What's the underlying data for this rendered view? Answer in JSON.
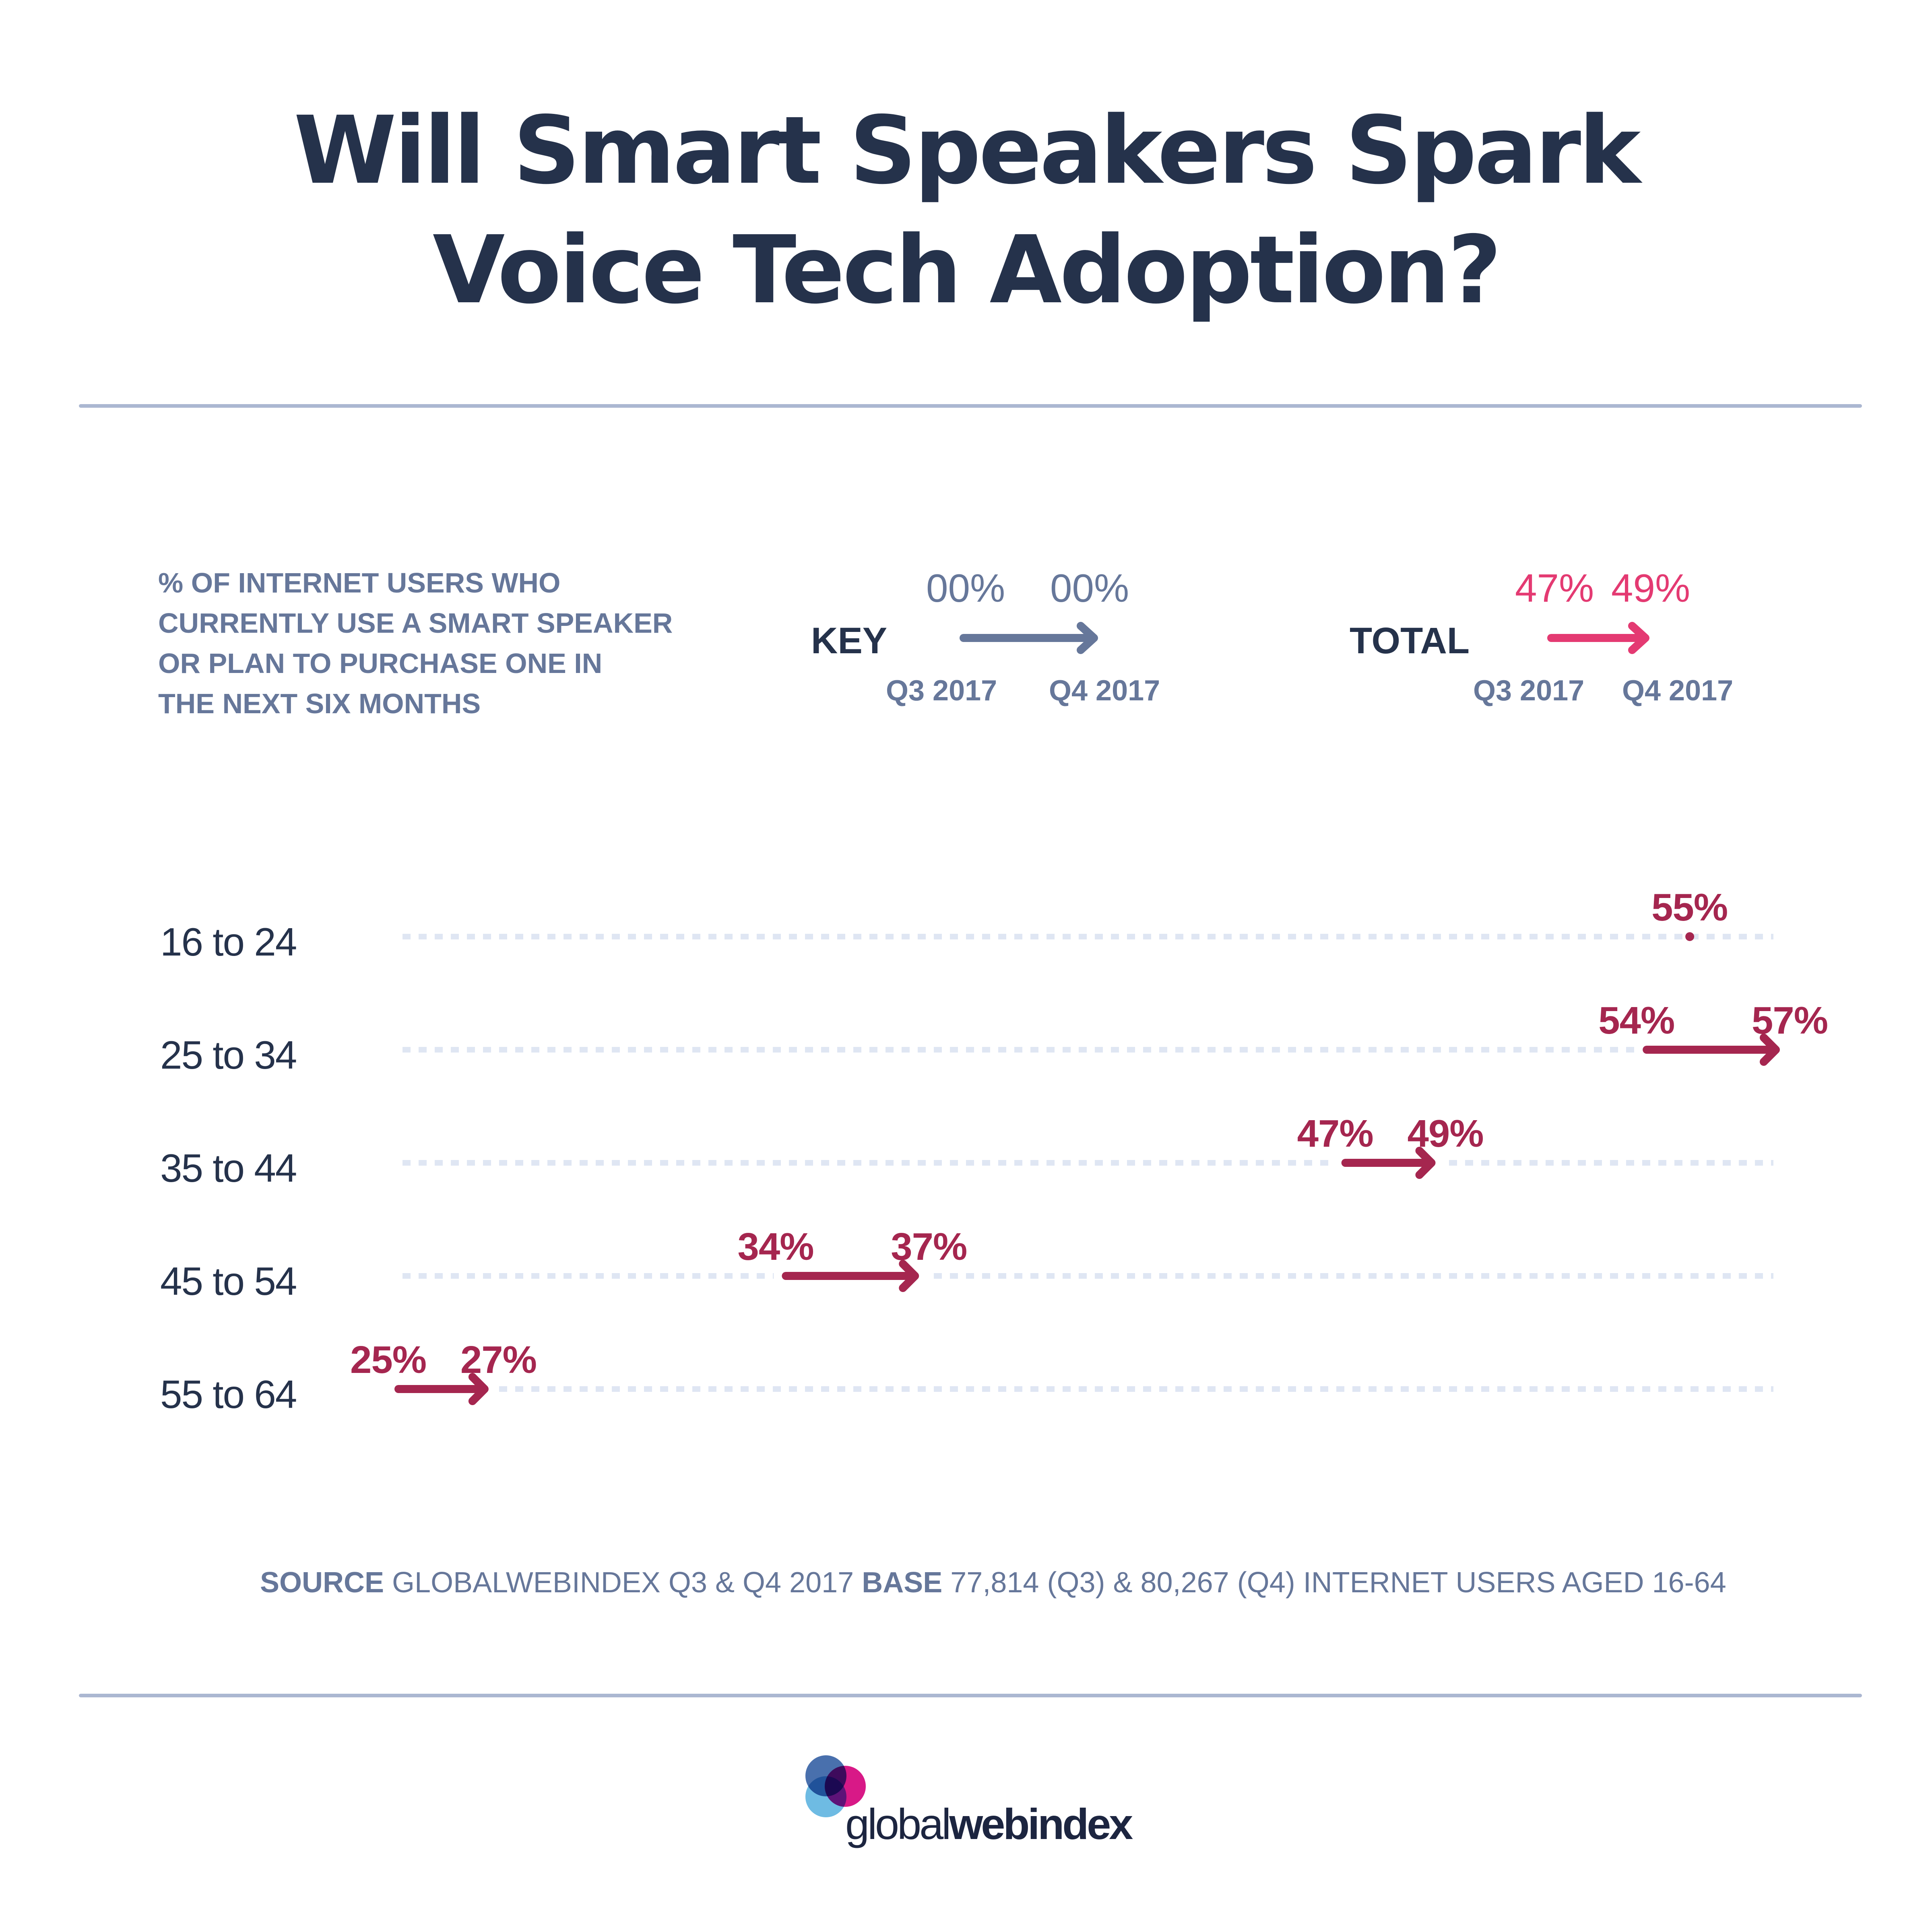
{
  "title": {
    "line1": "Will Smart Speakers Spark",
    "line2": "Voice Tech Adoption?"
  },
  "subtitle_lines": [
    "% OF INTERNET USERS WHO",
    "CURRENTLY USE A SMART SPEAKER",
    "OR PLAN TO PURCHASE ONE IN",
    "THE NEXT SIX MONTHS"
  ],
  "key": {
    "label": "KEY",
    "from_value": "00%",
    "to_value": "00%",
    "from_period": "Q3 2017",
    "to_period": "Q4 2017",
    "color": "#66779a"
  },
  "total": {
    "label": "TOTAL",
    "from_value": "47%",
    "to_value": "49%",
    "from_period": "Q3 2017",
    "to_period": "Q4 2017",
    "color": "#e43a72"
  },
  "colors": {
    "title": "#25324b",
    "muted": "#66779a",
    "series": "#a5264f",
    "total_accent": "#e43a72",
    "rule": "#abb7d1",
    "dotted_line": "#dfe6f3"
  },
  "chart_data": {
    "type": "dumbbell-arrow",
    "title": "Will Smart Speakers Spark Voice Tech Adoption?",
    "subtitle": "% of internet users who currently use a smart speaker or plan to purchase one in the next six months",
    "categories": [
      "16 to 24",
      "25 to 34",
      "35 to 44",
      "45 to 54",
      "55 to 64"
    ],
    "series": [
      {
        "name": "Q3 2017",
        "values": [
          55,
          54,
          47,
          34,
          25
        ]
      },
      {
        "name": "Q4 2017",
        "values": [
          55,
          57,
          49,
          37,
          27
        ]
      }
    ],
    "labels": [
      {
        "category": "16 to 24",
        "texts": [
          "55%"
        ]
      },
      {
        "category": "25 to 34",
        "texts": [
          "54%",
          "57%"
        ]
      },
      {
        "category": "35 to 44",
        "texts": [
          "47%",
          "49%"
        ]
      },
      {
        "category": "45 to 54",
        "texts": [
          "34%",
          "37%"
        ]
      },
      {
        "category": "55 to 64",
        "texts": [
          "25%",
          "27%"
        ]
      }
    ],
    "total": {
      "Q3 2017": 47,
      "Q4 2017": 49
    },
    "xlim": [
      25,
      57
    ],
    "unit": "%",
    "grid": "dotted row guides",
    "legend": "top"
  },
  "footer": {
    "source_label": "SOURCE",
    "source_text": " GLOBALWEBINDEX Q3 & Q4 2017 ",
    "base_label": "BASE",
    "base_text": " 77,814 (Q3) & 80,267 (Q4) INTERNET USERS AGED 16-64"
  },
  "logo": {
    "text_light": "global",
    "text_bold": "webindex",
    "circle_colors": [
      "#3f68a9",
      "#d4007a",
      "#66b8e2"
    ]
  }
}
